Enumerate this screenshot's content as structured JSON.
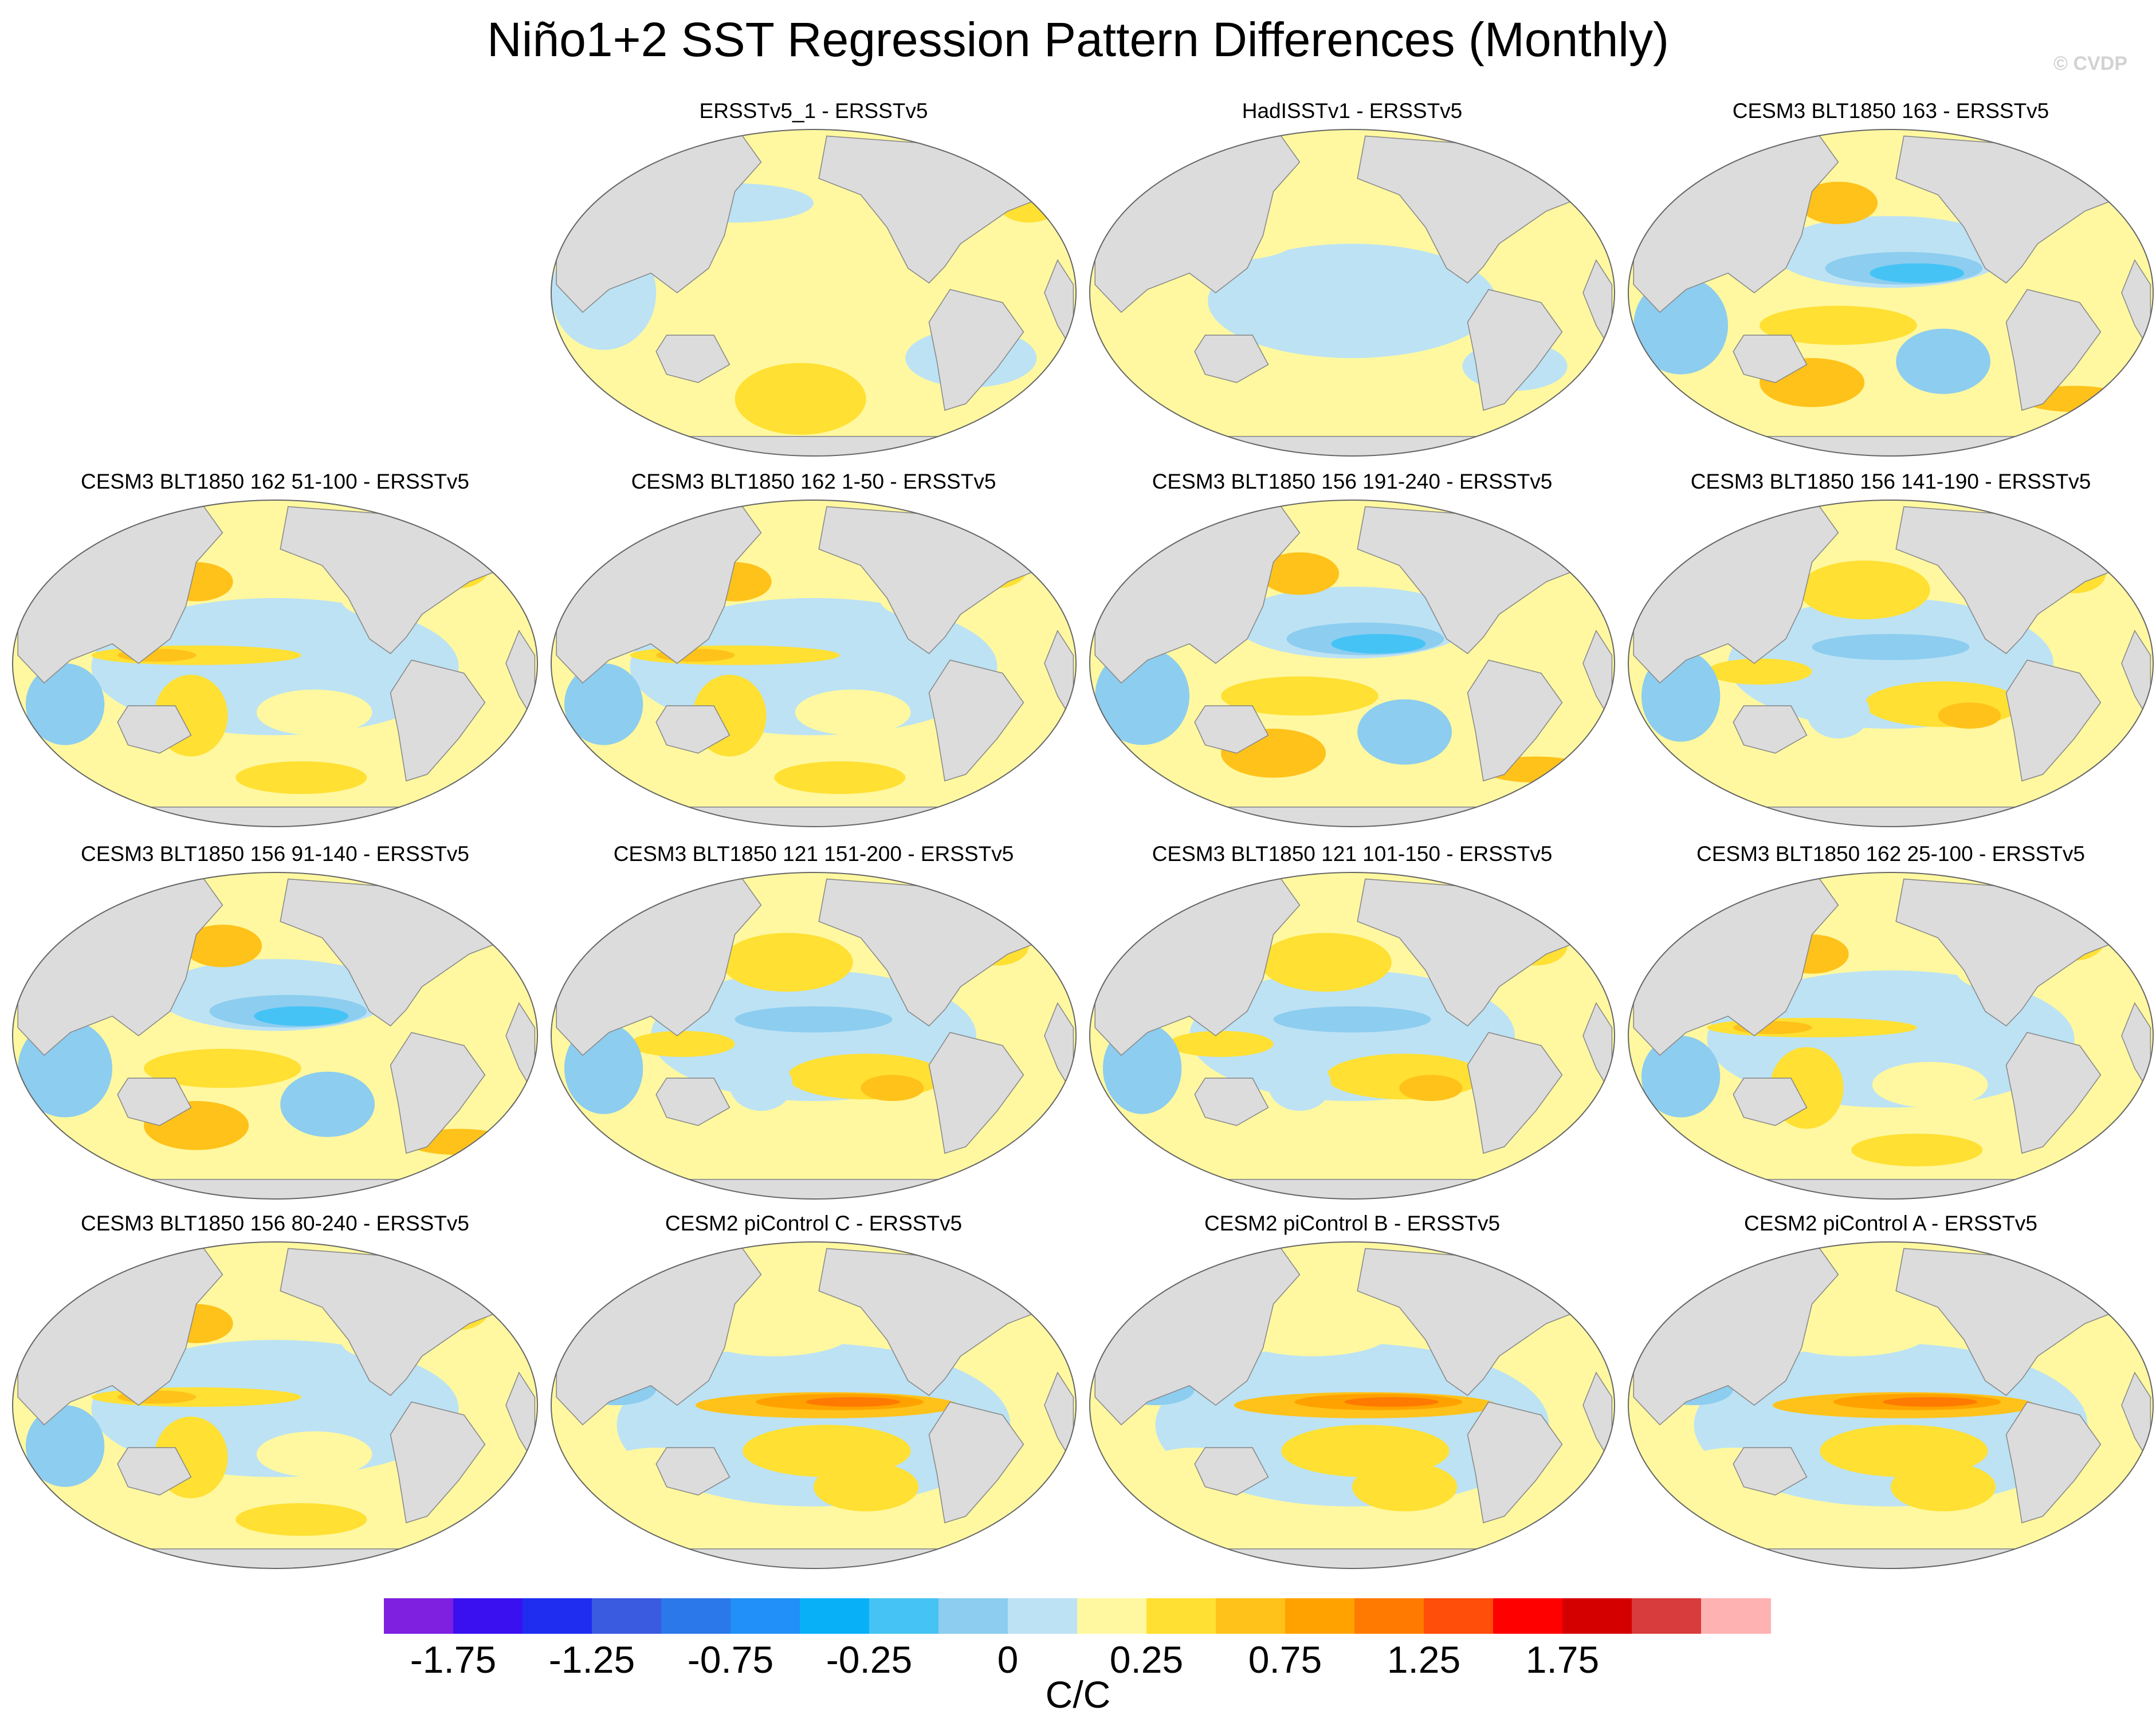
{
  "figure": {
    "title": "Niño1+2 SST Regression Pattern Differences (Monthly)",
    "watermark": "© CVDP"
  },
  "panels": [
    {
      "title": "ERSSTv5_1 - ERSSTv5",
      "pattern": "obs1"
    },
    {
      "title": "HadISSTv1 - ERSSTv5",
      "pattern": "obs2"
    },
    {
      "title": "CESM3 BLT1850 163 - ERSSTv5",
      "pattern": "cool"
    },
    {
      "title": "CESM3 BLT1850 162 51-100 - ERSSTv5",
      "pattern": "warmeq"
    },
    {
      "title": "CESM3 BLT1850 162 1-50 - ERSSTv5",
      "pattern": "warmeq"
    },
    {
      "title": "CESM3 BLT1850 156 191-240 - ERSSTv5",
      "pattern": "cool"
    },
    {
      "title": "CESM3 BLT1850 156 141-190 - ERSSTv5",
      "pattern": "mixed"
    },
    {
      "title": "CESM3 BLT1850 156 91-140 - ERSSTv5",
      "pattern": "cool"
    },
    {
      "title": "CESM3 BLT1850 121 151-200 - ERSSTv5",
      "pattern": "mixed"
    },
    {
      "title": "CESM3 BLT1850 121 101-150 - ERSSTv5",
      "pattern": "mixed"
    },
    {
      "title": "CESM3 BLT1850 162 25-100 - ERSSTv5",
      "pattern": "warmeq"
    },
    {
      "title": "CESM3 BLT1850 156 80-240 - ERSSTv5",
      "pattern": "warmeq"
    },
    {
      "title": "CESM2 piControl C - ERSSTv5",
      "pattern": "elnino"
    },
    {
      "title": "CESM2 piControl B - ERSSTv5",
      "pattern": "elnino"
    },
    {
      "title": "CESM2 piControl A - ERSSTv5",
      "pattern": "elnino"
    }
  ],
  "colorbar": {
    "colors": [
      "#7f1fe0",
      "#3a10f0",
      "#1f2df0",
      "#3a5ae0",
      "#2b78ea",
      "#2190f8",
      "#08b0f8",
      "#45c3f5",
      "#8dcdef",
      "#bce2f4",
      "#fff8a0",
      "#ffe033",
      "#ffc21a",
      "#ffa200",
      "#ff7a00",
      "#ff4d0a",
      "#ff0000",
      "#d40000",
      "#d83c3c",
      "#ffb2b2"
    ],
    "tick_labels": [
      "-1.75",
      "-1.25",
      "-0.75",
      "-0.25",
      "0",
      "0.25",
      "0.75",
      "1.25",
      "1.75"
    ],
    "units": "C/C",
    "levels": [
      -2.0,
      -1.75,
      -1.5,
      -1.25,
      -1.0,
      -0.75,
      -0.5,
      -0.25,
      -0.1,
      0,
      0.1,
      0.25,
      0.5,
      0.75,
      1.0,
      1.25,
      1.5,
      1.75,
      2.0
    ]
  }
}
